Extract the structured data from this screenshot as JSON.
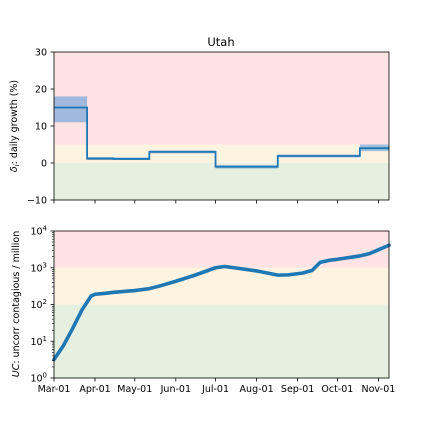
{
  "chart_data": [
    {
      "type": "line",
      "title": "Utah",
      "ylabel_symbol": "δ",
      "ylabel_sub": "i",
      "ylabel_text": ": daily growth (%)",
      "ylim": [
        -10,
        30
      ],
      "yticks": [
        -10,
        0,
        10,
        20,
        30
      ],
      "ytick_labels": [
        "−10",
        "0",
        "10",
        "20",
        "30"
      ],
      "bands": [
        {
          "from": -10,
          "to": 0,
          "color": "#e6f0e0"
        },
        {
          "from": 0,
          "to": 5,
          "color": "#fdf3e1"
        },
        {
          "from": 5,
          "to": 30,
          "color": "#fde3e3"
        }
      ],
      "series": [
        {
          "type": "step",
          "color": "#1f77b4",
          "band_color": "#6fa3d9",
          "segments": [
            {
              "start": "2020-03-01",
              "end": "2020-03-26",
              "value": 15,
              "low": 11,
              "high": 18
            },
            {
              "start": "2020-03-26",
              "end": "2020-04-15",
              "value": 1.2,
              "low": 0.8,
              "high": 1.6
            },
            {
              "start": "2020-04-15",
              "end": "2020-05-12",
              "value": 1.1,
              "low": 0.8,
              "high": 1.5
            },
            {
              "start": "2020-05-12",
              "end": "2020-07-01",
              "value": 3.0,
              "low": 2.6,
              "high": 3.4
            },
            {
              "start": "2020-07-01",
              "end": "2020-08-17",
              "value": -1.0,
              "low": -1.5,
              "high": -0.6
            },
            {
              "start": "2020-08-17",
              "end": "2020-10-18",
              "value": 1.9,
              "low": 1.5,
              "high": 2.3
            },
            {
              "start": "2020-10-18",
              "end": "2020-11-09",
              "value": 4.0,
              "low": 3.2,
              "high": 5.0
            }
          ]
        }
      ]
    },
    {
      "type": "line",
      "ylabel_symbol": "UC",
      "ylabel_text": ": uncorr contagious / million",
      "yscale": "log",
      "ylim": [
        1,
        10000
      ],
      "yticks": [
        1,
        10,
        100,
        1000,
        10000
      ],
      "ytick_exponents": [
        "0",
        "1",
        "2",
        "3",
        "4"
      ],
      "bands": [
        {
          "from": 1,
          "to": 100,
          "color": "#e6f0e0"
        },
        {
          "from": 100,
          "to": 1000,
          "color": "#fdf3e1"
        },
        {
          "from": 1000,
          "to": 10000,
          "color": "#fde3e3"
        }
      ],
      "series": [
        {
          "type": "line",
          "color": "#1f77b4",
          "points": [
            [
              "2020-03-01",
              3.2
            ],
            [
              "2020-03-08",
              7.5
            ],
            [
              "2020-03-15",
              22
            ],
            [
              "2020-03-22",
              70
            ],
            [
              "2020-03-29",
              170
            ],
            [
              "2020-04-01",
              190
            ],
            [
              "2020-04-08",
              200
            ],
            [
              "2020-04-15",
              215
            ],
            [
              "2020-04-22",
              225
            ],
            [
              "2020-05-01",
              240
            ],
            [
              "2020-05-12",
              270
            ],
            [
              "2020-05-20",
              320
            ],
            [
              "2020-06-01",
              430
            ],
            [
              "2020-06-15",
              620
            ],
            [
              "2020-07-01",
              1000
            ],
            [
              "2020-07-08",
              1080
            ],
            [
              "2020-07-15",
              1000
            ],
            [
              "2020-08-01",
              820
            ],
            [
              "2020-08-17",
              630
            ],
            [
              "2020-08-25",
              640
            ],
            [
              "2020-09-05",
              720
            ],
            [
              "2020-09-12",
              850
            ],
            [
              "2020-09-18",
              1400
            ],
            [
              "2020-09-25",
              1600
            ],
            [
              "2020-10-01",
              1700
            ],
            [
              "2020-10-18",
              2100
            ],
            [
              "2020-10-25",
              2400
            ],
            [
              "2020-11-09",
              4100
            ]
          ]
        }
      ]
    }
  ],
  "xaxis": {
    "ticks": [
      {
        "date": "2020-03-01",
        "label": "Mar-01"
      },
      {
        "date": "2020-04-01",
        "label": "Apr-01"
      },
      {
        "date": "2020-05-01",
        "label": "May-01"
      },
      {
        "date": "2020-06-01",
        "label": "Jun-01"
      },
      {
        "date": "2020-07-01",
        "label": "Jul-01"
      },
      {
        "date": "2020-08-01",
        "label": "Aug-01"
      },
      {
        "date": "2020-09-01",
        "label": "Sep-01"
      },
      {
        "date": "2020-10-01",
        "label": "Oct-01"
      },
      {
        "date": "2020-11-01",
        "label": "Nov-01"
      }
    ],
    "xlim": [
      "2020-03-01",
      "2020-11-09"
    ]
  }
}
